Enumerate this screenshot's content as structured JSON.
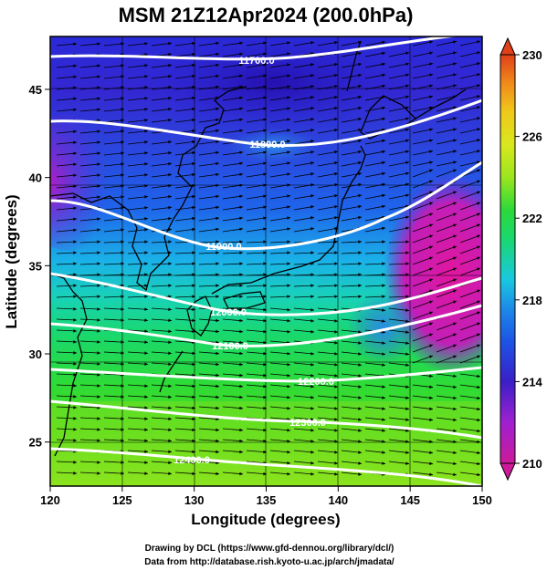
{
  "title": "MSM 21Z12Apr2024 (200.0hPa)",
  "xlabel": "Longitude (degrees)",
  "ylabel": "Latitude  (degrees)",
  "credits": [
    "Drawing by DCL (https://www.gfd-dennou.org/library/dcl/)",
    "Data from http://database.rish.kyoto-u.ac.jp/arch/jmadata/"
  ],
  "chart_data": {
    "type": "heatmap",
    "xlim": [
      120,
      150
    ],
    "ylim": [
      22.5,
      48
    ],
    "x_ticks": [
      "120",
      "125",
      "130",
      "135",
      "140",
      "145",
      "150"
    ],
    "y_ticks": [
      "25",
      "30",
      "35",
      "40",
      "45"
    ],
    "grid": true,
    "colorbar": {
      "min": 210,
      "max": 230,
      "ticks": [
        "230",
        "226",
        "222",
        "218",
        "214",
        "210"
      ],
      "colors": [
        "#cc1a99",
        "#a020d0",
        "#3a1fc8",
        "#1c55e6",
        "#19c8e0",
        "#19d86e",
        "#2cd93a",
        "#9be61e",
        "#d9e81c",
        "#f0c81a",
        "#f08a1a",
        "#e0401a"
      ]
    },
    "contours": [
      {
        "label": "11700.0",
        "y_at_120": 46.9,
        "y_at_150": 48.2
      },
      {
        "label": "11800.0",
        "y_at_120": 43.6,
        "y_at_150": 45.2
      },
      {
        "label": "11900.0",
        "y_at_120": 39.1,
        "y_at_150": 42.0
      },
      {
        "label": "12000.0",
        "y_at_120": 34.9,
        "y_at_150": 34.4
      },
      {
        "label": "12100.0",
        "y_at_120": 33.5,
        "y_at_150": 30.5
      },
      {
        "label": "12200.0",
        "y_at_120": 28.9,
        "y_at_150": 29.5
      },
      {
        "label": "12300.0",
        "y_at_120": 27.3,
        "y_at_150": 25.5
      },
      {
        "label": "12400.0",
        "y_at_120": 25.0,
        "y_at_150": 22.5
      }
    ],
    "wind_direction": "west-to-east"
  }
}
